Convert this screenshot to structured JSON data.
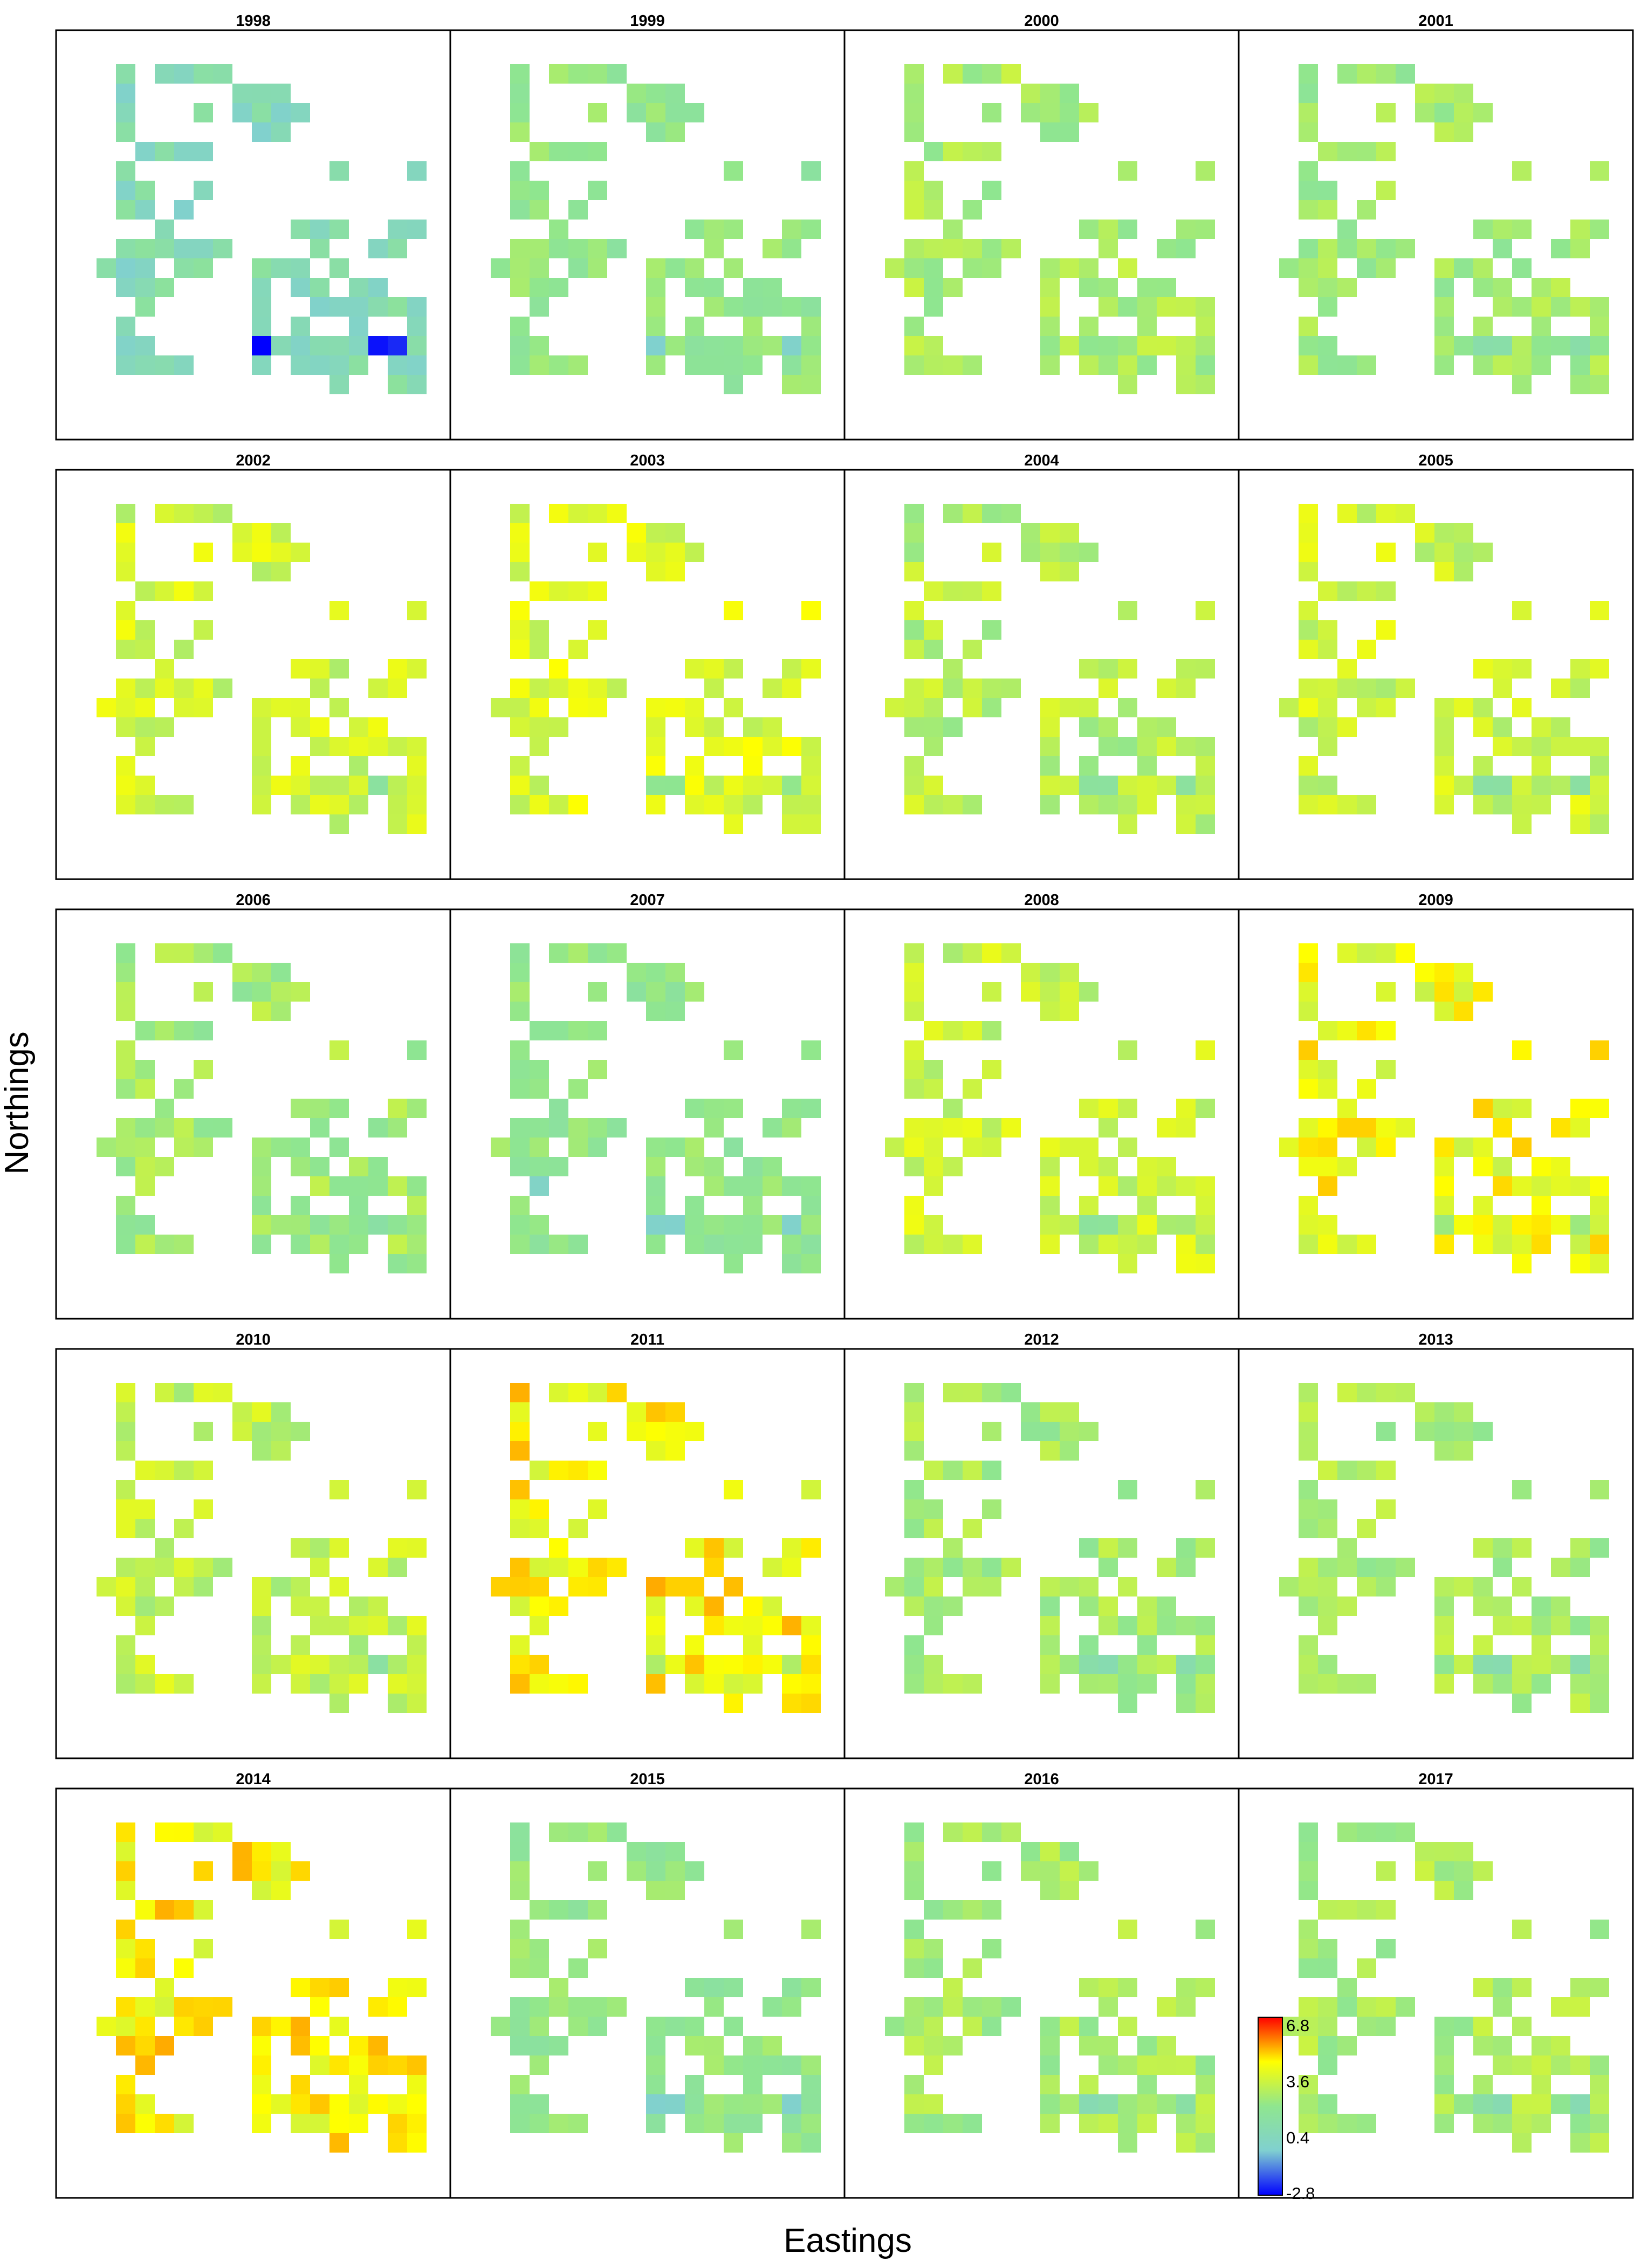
{
  "chart_data": {
    "type": "heatmap",
    "xlabel": "Eastings",
    "ylabel": "Northings",
    "colorbar": {
      "ticks": [
        "6.8",
        "3.6",
        "0.4",
        "-2.8"
      ],
      "tick_values": [
        6.8,
        3.6,
        0.4,
        -2.8
      ],
      "range": [
        -2.8,
        6.8
      ],
      "colors": [
        "#0000ff",
        "#80d0d0",
        "#8fe68f",
        "#ffff00",
        "#ff0000"
      ],
      "placement": "bottom-left of last panel"
    },
    "grid": {
      "cols": 17,
      "rows": 20
    },
    "cells": [
      [
        1,
        1
      ],
      [
        3,
        1
      ],
      [
        4,
        1
      ],
      [
        5,
        1
      ],
      [
        6,
        1
      ],
      [
        1,
        2
      ],
      [
        7,
        2
      ],
      [
        8,
        2
      ],
      [
        9,
        2
      ],
      [
        1,
        3
      ],
      [
        5,
        3
      ],
      [
        8,
        3
      ],
      [
        9,
        3
      ],
      [
        10,
        3
      ],
      [
        7,
        3
      ],
      [
        1,
        4
      ],
      [
        8,
        4
      ],
      [
        9,
        4
      ],
      [
        2,
        5
      ],
      [
        3,
        5
      ],
      [
        4,
        5
      ],
      [
        5,
        5
      ],
      [
        1,
        6
      ],
      [
        12,
        6
      ],
      [
        16,
        6
      ],
      [
        1,
        7
      ],
      [
        2,
        7
      ],
      [
        5,
        7
      ],
      [
        1,
        8
      ],
      [
        2,
        8
      ],
      [
        4,
        8
      ],
      [
        3,
        9
      ],
      [
        10,
        9
      ],
      [
        11,
        9
      ],
      [
        12,
        9
      ],
      [
        15,
        9
      ],
      [
        16,
        9
      ],
      [
        1,
        10
      ],
      [
        2,
        10
      ],
      [
        3,
        10
      ],
      [
        4,
        10
      ],
      [
        5,
        10
      ],
      [
        6,
        10
      ],
      [
        11,
        10
      ],
      [
        14,
        10
      ],
      [
        15,
        10
      ],
      [
        0,
        11
      ],
      [
        1,
        11
      ],
      [
        2,
        11
      ],
      [
        4,
        11
      ],
      [
        5,
        11
      ],
      [
        8,
        11
      ],
      [
        9,
        11
      ],
      [
        10,
        11
      ],
      [
        12,
        11
      ],
      [
        1,
        12
      ],
      [
        2,
        12
      ],
      [
        3,
        12
      ],
      [
        8,
        12
      ],
      [
        10,
        12
      ],
      [
        11,
        12
      ],
      [
        13,
        12
      ],
      [
        14,
        12
      ],
      [
        2,
        13
      ],
      [
        8,
        13
      ],
      [
        11,
        13
      ],
      [
        12,
        13
      ],
      [
        13,
        13
      ],
      [
        14,
        13
      ],
      [
        15,
        13
      ],
      [
        16,
        13
      ],
      [
        1,
        14
      ],
      [
        8,
        14
      ],
      [
        10,
        14
      ],
      [
        13,
        14
      ],
      [
        16,
        14
      ],
      [
        1,
        15
      ],
      [
        2,
        15
      ],
      [
        8,
        15
      ],
      [
        9,
        15
      ],
      [
        10,
        15
      ],
      [
        11,
        15
      ],
      [
        12,
        15
      ],
      [
        13,
        15
      ],
      [
        14,
        15
      ],
      [
        15,
        15
      ],
      [
        16,
        15
      ],
      [
        1,
        16
      ],
      [
        2,
        16
      ],
      [
        3,
        16
      ],
      [
        4,
        16
      ],
      [
        8,
        16
      ],
      [
        10,
        16
      ],
      [
        11,
        16
      ],
      [
        12,
        16
      ],
      [
        13,
        16
      ],
      [
        15,
        16
      ],
      [
        16,
        16
      ],
      [
        12,
        17
      ],
      [
        15,
        17
      ],
      [
        16,
        17
      ]
    ],
    "panels": [
      {
        "title": "1998",
        "base": 0.6,
        "amp": 0.9,
        "lows": [
          [
            6,
            15
          ],
          [
            7,
            15
          ],
          [
            8,
            15
          ],
          [
            14,
            15
          ],
          [
            15,
            15
          ],
          [
            4,
            17
          ]
        ],
        "low": -2.6
      },
      {
        "title": "1999",
        "base": 2.0,
        "amp": 0.6,
        "lows": [
          [
            8,
            15
          ],
          [
            15,
            15
          ]
        ],
        "low": -0.4
      },
      {
        "title": "2000",
        "base": 2.6,
        "amp": 0.7,
        "lows": [],
        "low": 1.2
      },
      {
        "title": "2001",
        "base": 2.4,
        "amp": 0.7,
        "lows": [
          [
            10,
            15
          ],
          [
            11,
            15
          ],
          [
            15,
            15
          ]
        ],
        "low": 1.0
      },
      {
        "title": "2002",
        "base": 3.4,
        "amp": 0.8,
        "lows": [
          [
            6,
            15
          ],
          [
            7,
            15
          ],
          [
            14,
            15
          ]
        ],
        "low": 1.6
      },
      {
        "title": "2003",
        "base": 3.6,
        "amp": 0.8,
        "lows": [
          [
            8,
            15
          ],
          [
            9,
            15
          ],
          [
            15,
            15
          ]
        ],
        "low": 2.0
      },
      {
        "title": "2004",
        "base": 2.9,
        "amp": 0.8,
        "lows": [
          [
            10,
            15
          ],
          [
            11,
            15
          ],
          [
            15,
            15
          ]
        ],
        "low": 1.4
      },
      {
        "title": "2005",
        "base": 3.3,
        "amp": 0.8,
        "lows": [
          [
            10,
            15
          ],
          [
            11,
            15
          ],
          [
            15,
            15
          ]
        ],
        "low": 1.5
      },
      {
        "title": "2006",
        "base": 2.4,
        "amp": 0.8,
        "lows": [
          [
            6,
            15
          ],
          [
            7,
            15
          ],
          [
            14,
            15
          ]
        ],
        "low": 1.0
      },
      {
        "title": "2007",
        "base": 2.0,
        "amp": 0.6,
        "lows": [
          [
            8,
            15
          ],
          [
            9,
            15
          ],
          [
            15,
            15
          ],
          [
            2,
            13
          ]
        ],
        "low": -0.2
      },
      {
        "title": "2008",
        "base": 3.3,
        "amp": 0.8,
        "lows": [
          [
            10,
            15
          ],
          [
            11,
            15
          ]
        ],
        "low": 1.8
      },
      {
        "title": "2009",
        "base": 4.0,
        "amp": 0.9,
        "lows": [
          [
            8,
            15
          ],
          [
            15,
            15
          ]
        ],
        "low": 2.2
      },
      {
        "title": "2010",
        "base": 3.1,
        "amp": 0.8,
        "lows": [
          [
            6,
            15
          ],
          [
            7,
            15
          ],
          [
            14,
            15
          ]
        ],
        "low": 1.4
      },
      {
        "title": "2011",
        "base": 4.3,
        "amp": 0.9,
        "lows": [
          [
            8,
            15
          ],
          [
            15,
            15
          ]
        ],
        "low": 2.6
      },
      {
        "title": "2012",
        "base": 2.5,
        "amp": 0.7,
        "lows": [
          [
            10,
            15
          ],
          [
            11,
            15
          ],
          [
            15,
            15
          ]
        ],
        "low": 0.8
      },
      {
        "title": "2013",
        "base": 2.6,
        "amp": 0.7,
        "lows": [
          [
            10,
            15
          ],
          [
            11,
            15
          ],
          [
            15,
            15
          ]
        ],
        "low": 1.0
      },
      {
        "title": "2014",
        "base": 4.3,
        "amp": 0.9,
        "lows": [
          [
            6,
            15
          ],
          [
            7,
            15
          ]
        ],
        "low": 2.8
      },
      {
        "title": "2015",
        "base": 2.0,
        "amp": 0.6,
        "lows": [
          [
            8,
            15
          ],
          [
            9,
            15
          ],
          [
            15,
            15
          ]
        ],
        "low": -0.3
      },
      {
        "title": "2016",
        "base": 2.5,
        "amp": 0.7,
        "lows": [
          [
            10,
            15
          ],
          [
            11,
            15
          ],
          [
            15,
            15
          ]
        ],
        "low": 1.0
      },
      {
        "title": "2017",
        "base": 2.6,
        "amp": 0.7,
        "lows": [
          [
            10,
            15
          ],
          [
            11,
            15
          ],
          [
            15,
            15
          ]
        ],
        "low": 1.0
      }
    ]
  }
}
